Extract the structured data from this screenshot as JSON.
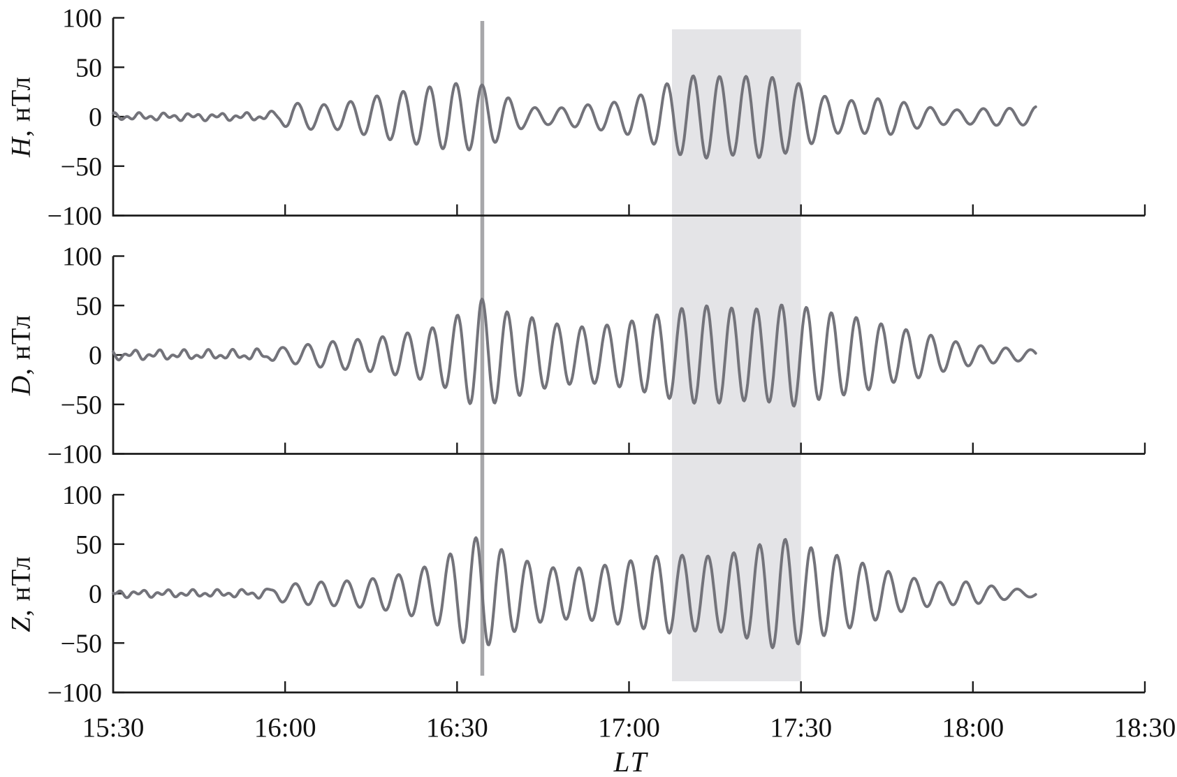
{
  "figure": {
    "xlabel": "LT",
    "x_tick_labels": [
      "15:30",
      "16:00",
      "16:30",
      "17:00",
      "17:30",
      "18:00",
      "18:30"
    ],
    "y_tick_labels": [
      "100",
      "50",
      "0",
      "−50",
      "−100"
    ],
    "panels": [
      {
        "label_var": "H",
        "label_unit": ", нТл"
      },
      {
        "label_var": "D",
        "label_unit": ", нТл"
      },
      {
        "label_var": "Z",
        "label_unit": ", нТл"
      }
    ]
  },
  "chart_data": {
    "type": "line",
    "title": "",
    "xlabel": "LT",
    "ylabel_unit": "нТл",
    "x_range": [
      "15:30",
      "18:30"
    ],
    "x_tick_interval_min": 30,
    "x_tick_minutes": [
      30,
      60,
      90,
      120,
      150,
      180
    ],
    "ylim": [
      -100,
      100
    ],
    "y_ticks": [
      100,
      50,
      0,
      -50,
      -100
    ],
    "grid": false,
    "legend": "none",
    "data_start_time": "15:30",
    "data_end_min": 161,
    "series_model": "y(t) = envelope(t) * sin(2*pi*(t - t_ref)/period + phase) + preonset_ripple; t in minutes after 15:30; envelope breakpoints are [t_min, amplitude_nT] read from the plot",
    "t_ref_min": 64.4,
    "annotations": {
      "vertical_line_time": "16:34",
      "vertical_line_min": 64.4,
      "shaded_interval_times": [
        "17:07",
        "17:30"
      ],
      "shaded_interval_min": [
        97.5,
        120
      ],
      "band_color": "#e4e4e7",
      "line_color": "#a7a7aa"
    },
    "style": {
      "curve_color": "#73737a",
      "axis_color": "#1b1b1b"
    },
    "ripple": {
      "period_min": 2.1,
      "fade_start_min": 26,
      "fade_end_min": 30
    },
    "series": [
      {
        "name": "H",
        "ylabel": "H, нТл",
        "period_min": 4.6,
        "phase_deg": 90,
        "ripple_amp": 2.2,
        "ripple_phase": 0.7,
        "envelope": [
          [
            0,
            2
          ],
          [
            20,
            2
          ],
          [
            26,
            2.5
          ],
          [
            29,
            6
          ],
          [
            31,
            14
          ],
          [
            34,
            13
          ],
          [
            38,
            12
          ],
          [
            42,
            16
          ],
          [
            46,
            21
          ],
          [
            50,
            25
          ],
          [
            54,
            29
          ],
          [
            58,
            33
          ],
          [
            61,
            34
          ],
          [
            64,
            33
          ],
          [
            66,
            28
          ],
          [
            69,
            19
          ],
          [
            72,
            10
          ],
          [
            76,
            8
          ],
          [
            80,
            10
          ],
          [
            84,
            13
          ],
          [
            88,
            15
          ],
          [
            92,
            22
          ],
          [
            96,
            32
          ],
          [
            100,
            41
          ],
          [
            104,
            42
          ],
          [
            108,
            39
          ],
          [
            112,
            42
          ],
          [
            116,
            39
          ],
          [
            120,
            33
          ],
          [
            124,
            21
          ],
          [
            127,
            16
          ],
          [
            131,
            17
          ],
          [
            135,
            19
          ],
          [
            139,
            13
          ],
          [
            143,
            9
          ],
          [
            147,
            7
          ],
          [
            151,
            8
          ],
          [
            155,
            9
          ],
          [
            158,
            8
          ],
          [
            161,
            10
          ]
        ]
      },
      {
        "name": "D",
        "ylabel": "D, нТл",
        "period_min": 4.35,
        "phase_deg": 90,
        "ripple_amp": 2.6,
        "ripple_phase": 2.1,
        "envelope": [
          [
            0,
            3
          ],
          [
            20,
            3
          ],
          [
            26,
            4
          ],
          [
            29,
            7
          ],
          [
            33,
            10
          ],
          [
            37,
            13
          ],
          [
            41,
            15
          ],
          [
            45,
            17
          ],
          [
            49,
            20
          ],
          [
            53,
            24
          ],
          [
            56,
            28
          ],
          [
            59,
            36
          ],
          [
            62,
            48
          ],
          [
            64,
            58
          ],
          [
            66,
            50
          ],
          [
            69,
            43
          ],
          [
            72,
            40
          ],
          [
            75,
            34
          ],
          [
            79,
            30
          ],
          [
            83,
            28
          ],
          [
            87,
            31
          ],
          [
            91,
            35
          ],
          [
            95,
            41
          ],
          [
            99,
            47
          ],
          [
            103,
            50
          ],
          [
            107,
            48
          ],
          [
            111,
            46
          ],
          [
            115,
            48
          ],
          [
            118,
            53
          ],
          [
            121,
            48
          ],
          [
            124,
            44
          ],
          [
            128,
            40
          ],
          [
            132,
            35
          ],
          [
            136,
            28
          ],
          [
            140,
            24
          ],
          [
            144,
            18
          ],
          [
            148,
            12
          ],
          [
            152,
            9
          ],
          [
            156,
            7
          ],
          [
            161,
            5
          ]
        ]
      },
      {
        "name": "Z",
        "ylabel": "Z, нТл",
        "period_min": 4.5,
        "phase_deg": 180,
        "ripple_amp": 2.2,
        "ripple_phase": 3.9,
        "envelope": [
          [
            0,
            2
          ],
          [
            20,
            2
          ],
          [
            26,
            3
          ],
          [
            29,
            8
          ],
          [
            33,
            11
          ],
          [
            37,
            12
          ],
          [
            41,
            13
          ],
          [
            45,
            15
          ],
          [
            49,
            18
          ],
          [
            53,
            24
          ],
          [
            57,
            33
          ],
          [
            60,
            45
          ],
          [
            62,
            54
          ],
          [
            64,
            58
          ],
          [
            66,
            50
          ],
          [
            69,
            41
          ],
          [
            73,
            31
          ],
          [
            77,
            26
          ],
          [
            81,
            26
          ],
          [
            85,
            28
          ],
          [
            89,
            32
          ],
          [
            93,
            36
          ],
          [
            97,
            40
          ],
          [
            101,
            38
          ],
          [
            105,
            38
          ],
          [
            109,
            42
          ],
          [
            113,
            50
          ],
          [
            116,
            57
          ],
          [
            119,
            52
          ],
          [
            122,
            46
          ],
          [
            125,
            41
          ],
          [
            129,
            34
          ],
          [
            133,
            27
          ],
          [
            137,
            19
          ],
          [
            141,
            14
          ],
          [
            145,
            11
          ],
          [
            149,
            12
          ],
          [
            153,
            8
          ],
          [
            157,
            5
          ],
          [
            161,
            3
          ]
        ]
      }
    ]
  }
}
